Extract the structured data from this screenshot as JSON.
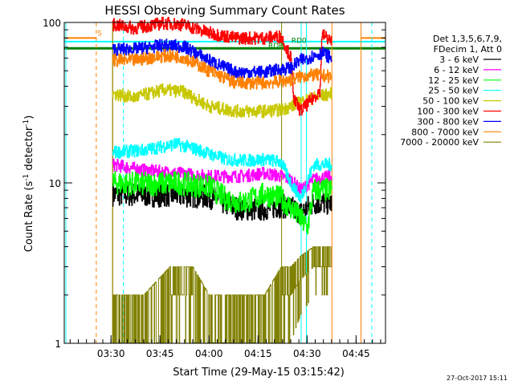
{
  "chart_data": {
    "type": "line",
    "title": "HESSI Observing Summary Count Rates",
    "xlabel": "Start Time (29-May-15 03:15:42)",
    "ylabel_main": "Count Rate (s",
    "ylabel_sup": "-1",
    "ylabel_tail": " detector",
    "ylabel_sup2": "-1",
    "ylabel_end": ")",
    "y_scale": "log",
    "ylim": [
      1,
      100
    ],
    "xlim_minutes": [
      195.7,
      294
    ],
    "x_ticks": [
      {
        "label": "03:30",
        "minute": 210
      },
      {
        "label": "03:45",
        "minute": 225
      },
      {
        "label": "04:00",
        "minute": 240
      },
      {
        "label": "04:15",
        "minute": 255
      },
      {
        "label": "04:30",
        "minute": 270
      },
      {
        "label": "04:45",
        "minute": 285
      }
    ],
    "y_ticks": [
      {
        "label": "1",
        "value": 1
      },
      {
        "label": "10",
        "value": 10
      },
      {
        "label": "100",
        "value": 100
      }
    ],
    "legend_header": [
      "Det 1,3,5,6,7,9,",
      "FDecim 1, Att 0"
    ],
    "legend_position": "right",
    "grid": false,
    "annotations": [
      {
        "text": "S",
        "minute": 206.5,
        "color": "#ff8000"
      },
      {
        "text": "RDB",
        "minute": 260.5,
        "color": "#008000"
      },
      {
        "text": "RD0",
        "minute": 267.5,
        "color": "#008000"
      }
    ],
    "data_start_minute": 210.5,
    "data_end_minute": 277.5,
    "gap_start_minute": 262.5,
    "gap_end_minute": 268.5,
    "series": [
      {
        "name": "3 - 6 keV",
        "color": "#000000",
        "points": [
          [
            210.5,
            8.5
          ],
          [
            220,
            8.4
          ],
          [
            230,
            8.4
          ],
          [
            240,
            8.2
          ],
          [
            248,
            7
          ],
          [
            255,
            6.8
          ],
          [
            262,
            7.2
          ],
          [
            265,
            7
          ],
          [
            268,
            6.5
          ],
          [
            272,
            7.5
          ],
          [
            277.5,
            7.5
          ]
        ]
      },
      {
        "name": "6 - 12 keV",
        "color": "#ff00ff",
        "points": [
          [
            210.5,
            13
          ],
          [
            220,
            12
          ],
          [
            230,
            11.5
          ],
          [
            240,
            11
          ],
          [
            250,
            11
          ],
          [
            257,
            11.5
          ],
          [
            262,
            11
          ],
          [
            265,
            10.5
          ],
          [
            268,
            9
          ],
          [
            272,
            10.5
          ],
          [
            277.5,
            11
          ]
        ]
      },
      {
        "name": "12 - 25 keV",
        "color": "#00ff00",
        "points": [
          [
            210.5,
            10
          ],
          [
            220,
            9.8
          ],
          [
            230,
            10
          ],
          [
            240,
            9.5
          ],
          [
            245,
            8
          ],
          [
            250,
            7.5
          ],
          [
            257,
            8.5
          ],
          [
            262,
            8
          ],
          [
            265,
            7
          ],
          [
            268,
            6
          ],
          [
            270,
            5.2
          ],
          [
            272,
            9
          ],
          [
            277.5,
            9
          ]
        ]
      },
      {
        "name": "25 - 50 keV",
        "color": "#00ffff",
        "points": [
          [
            210.5,
            15.5
          ],
          [
            220,
            16
          ],
          [
            230,
            17.5
          ],
          [
            237,
            16
          ],
          [
            245,
            14
          ],
          [
            252,
            13.8
          ],
          [
            257,
            14
          ],
          [
            262,
            13.5
          ],
          [
            265,
            10
          ],
          [
            268,
            8
          ],
          [
            272,
            13
          ],
          [
            277.5,
            13
          ]
        ]
      },
      {
        "name": "50 - 100 keV",
        "color": "#c8c800",
        "points": [
          [
            210.5,
            36
          ],
          [
            217,
            34
          ],
          [
            226,
            38
          ],
          [
            232,
            37
          ],
          [
            240,
            30
          ],
          [
            248,
            28
          ],
          [
            257,
            28
          ],
          [
            262,
            28.5
          ],
          [
            265,
            30
          ],
          [
            268,
            32
          ],
          [
            272,
            34
          ],
          [
            277.5,
            36
          ]
        ]
      },
      {
        "name": "100 - 300 keV",
        "color": "#ff0000",
        "points": [
          [
            210.5,
            97
          ],
          [
            217,
            92
          ],
          [
            226,
            99
          ],
          [
            232,
            97
          ],
          [
            240,
            86
          ],
          [
            248,
            80
          ],
          [
            257,
            80
          ],
          [
            262,
            82
          ],
          [
            265,
            60
          ],
          [
            266,
            33
          ],
          [
            268,
            28
          ],
          [
            272,
            34
          ],
          [
            274,
            38
          ],
          [
            274.5,
            85
          ],
          [
            277.5,
            76
          ]
        ]
      },
      {
        "name": "300 - 800 keV",
        "color": "#0000ff",
        "points": [
          [
            210.5,
            68
          ],
          [
            217,
            68
          ],
          [
            226,
            72
          ],
          [
            232,
            71
          ],
          [
            240,
            58
          ],
          [
            248,
            49
          ],
          [
            257,
            49
          ],
          [
            262,
            51
          ],
          [
            265,
            52
          ],
          [
            268,
            58
          ],
          [
            272,
            62
          ],
          [
            274,
            64
          ],
          [
            274.5,
            65
          ],
          [
            277.5,
            60
          ]
        ]
      },
      {
        "name": "800 - 7000 keV",
        "color": "#ff8000",
        "points": [
          [
            210.5,
            58
          ],
          [
            217,
            58
          ],
          [
            226,
            62
          ],
          [
            232,
            61
          ],
          [
            240,
            50
          ],
          [
            248,
            42
          ],
          [
            257,
            42
          ],
          [
            262,
            43
          ],
          [
            265,
            44
          ],
          [
            268,
            46
          ],
          [
            272,
            47
          ],
          [
            277.5,
            46
          ]
        ]
      },
      {
        "name": "7000 - 20000 keV",
        "color": "#808000",
        "points": [
          [
            210.5,
            2
          ],
          [
            220,
            2
          ],
          [
            228,
            3
          ],
          [
            235,
            3
          ],
          [
            240,
            2
          ],
          [
            250,
            2
          ],
          [
            257,
            2
          ],
          [
            262,
            3
          ],
          [
            265,
            3
          ],
          [
            268,
            3.5
          ],
          [
            272,
            4
          ],
          [
            277.5,
            4
          ]
        ]
      }
    ],
    "horizontal_bars": [
      {
        "label": "S",
        "color": "#ff8000",
        "value": 80,
        "from_minute": 195.7,
        "to_minute": 205.5
      },
      {
        "label": "S",
        "color": "#ff8000",
        "value": 80,
        "from_minute": 286.5,
        "to_minute": 294
      },
      {
        "label": "cyan",
        "color": "#00ffff",
        "value": 76,
        "from_minute": 195.7,
        "to_minute": 294
      },
      {
        "label": "RDB",
        "color": "#008000",
        "value": 69,
        "from_minute": 195.7,
        "to_minute": 294
      }
    ],
    "vertical_lines": [
      {
        "minute": 205.5,
        "color": "#ff8000",
        "style": "dashed"
      },
      {
        "minute": 210.5,
        "color": "#ff8000",
        "style": "solid"
      },
      {
        "minute": 210.5,
        "color": "#808000",
        "style": "solid"
      },
      {
        "minute": 213.8,
        "color": "#00ffff",
        "style": "dashed"
      },
      {
        "minute": 262.2,
        "color": "#808000",
        "style": "solid"
      },
      {
        "minute": 268.2,
        "color": "#00ffff",
        "style": "solid"
      },
      {
        "minute": 269.8,
        "color": "#00ffff",
        "style": "solid"
      },
      {
        "minute": 277.6,
        "color": "#ff8000",
        "style": "solid"
      },
      {
        "minute": 286.5,
        "color": "#ff8000",
        "style": "solid"
      },
      {
        "minute": 289.8,
        "color": "#00ffff",
        "style": "dashed"
      }
    ],
    "left_cyan_line": {
      "minute": 196.2,
      "color": "#00ffff"
    }
  },
  "footer": {
    "timestamp": "27-Oct-2017 15:11"
  }
}
